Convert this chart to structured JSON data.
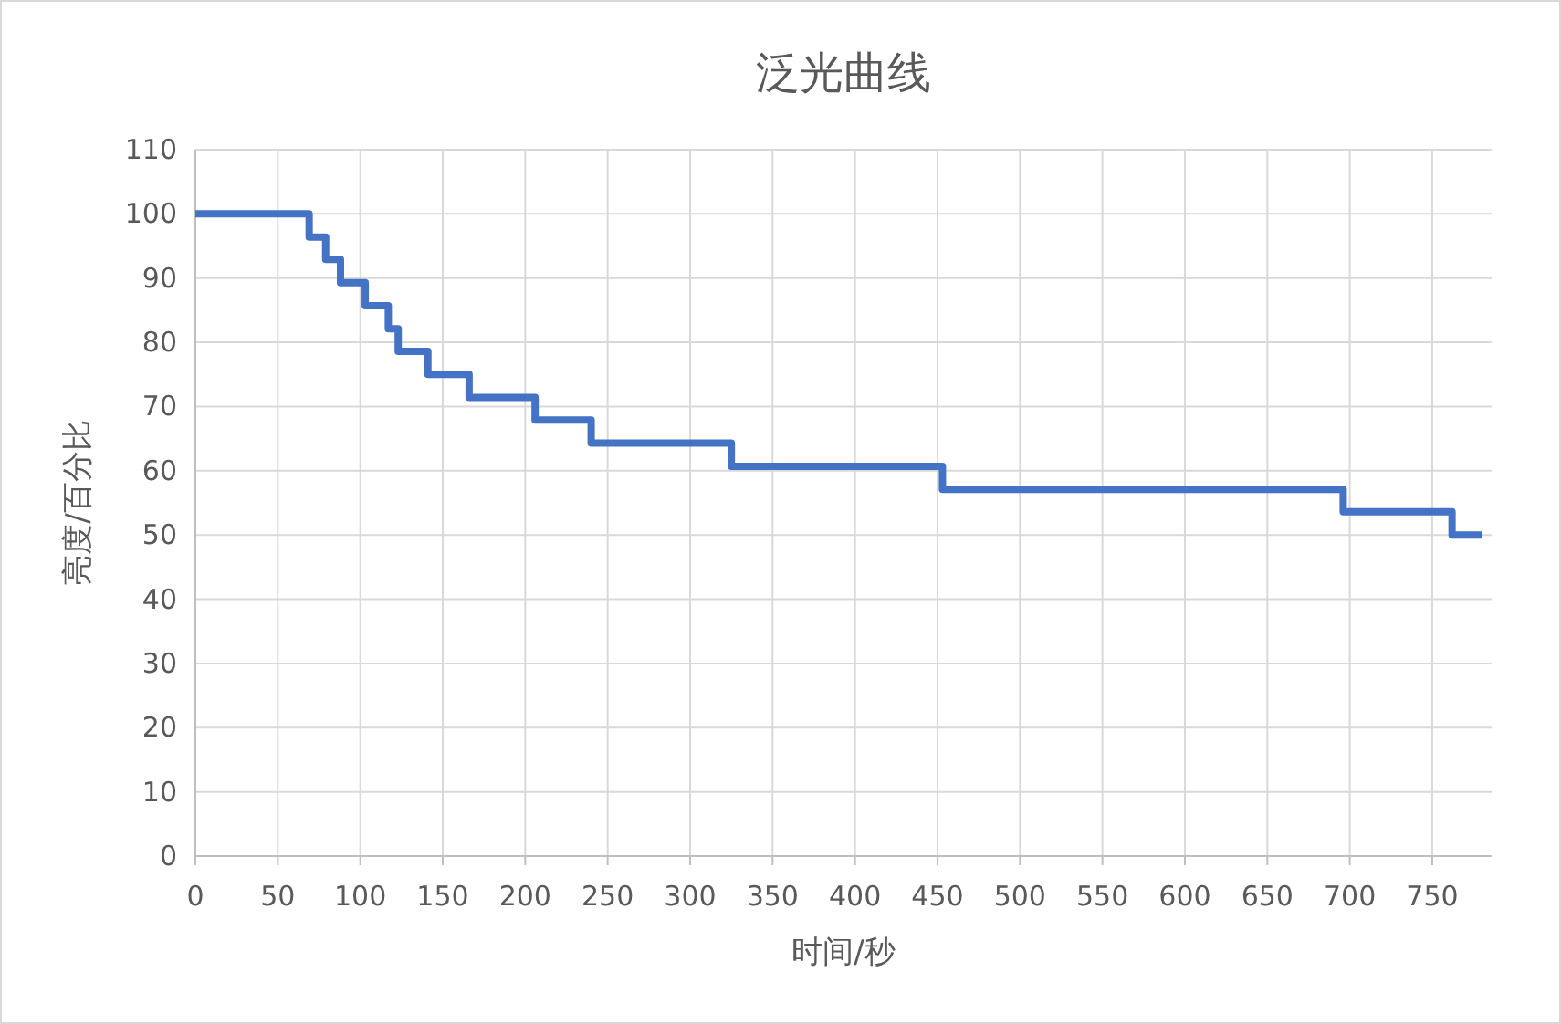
{
  "chart_data": {
    "type": "step",
    "title": "泛光曲线",
    "xlabel": "时间/秒",
    "ylabel": "亮度/百分比",
    "x": [
      0,
      69,
      79,
      88,
      103,
      117,
      123,
      141,
      166,
      206,
      240,
      325,
      453,
      696,
      762,
      780
    ],
    "series": [
      {
        "color": "#4472c4",
        "values": [
          100,
          96.4,
          92.9,
          89.3,
          85.7,
          82.1,
          78.6,
          75,
          71.4,
          67.9,
          64.3,
          60.7,
          57.1,
          53.6,
          50,
          50
        ]
      }
    ],
    "xlim": [
      0,
      786
    ],
    "xticks": [
      0,
      50,
      100,
      150,
      200,
      250,
      300,
      350,
      400,
      450,
      500,
      550,
      600,
      650,
      700,
      750
    ],
    "ylim": [
      0,
      110
    ],
    "yticks": [
      0,
      10,
      20,
      30,
      40,
      50,
      60,
      70,
      80,
      90,
      100,
      110
    ],
    "grid": true,
    "line_style": "solid"
  }
}
